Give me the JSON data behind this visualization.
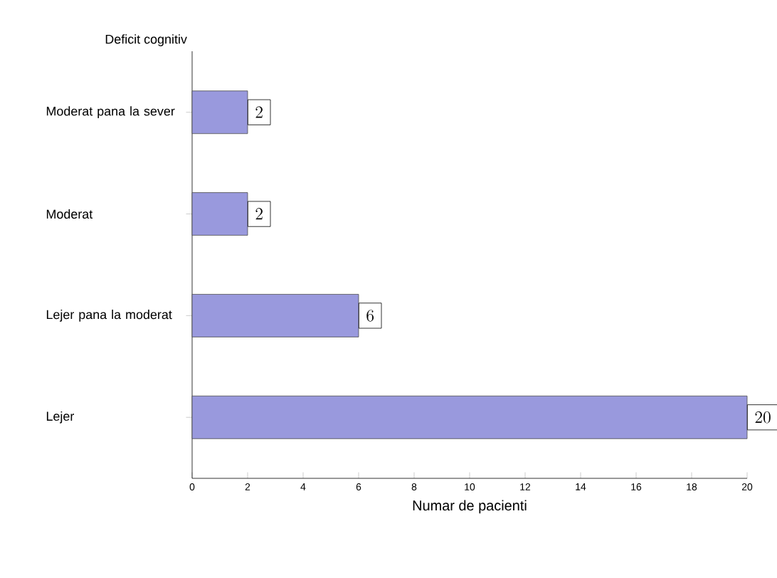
{
  "chart_data": {
    "type": "bar",
    "orientation": "horizontal",
    "ylabel": "Deficit cognitiv",
    "xlabel": "Numar de pacienti",
    "categories": [
      "Moderat pana la sever",
      "Moderat",
      "Lejer pana la moderat",
      "Lejer"
    ],
    "values": [
      2,
      2,
      6,
      20
    ],
    "color": "#9999dd",
    "data_labels": true,
    "xlim": [
      0,
      20
    ],
    "xticks": [
      0,
      2,
      4,
      6,
      8,
      10,
      12,
      14,
      16,
      18,
      20
    ]
  }
}
